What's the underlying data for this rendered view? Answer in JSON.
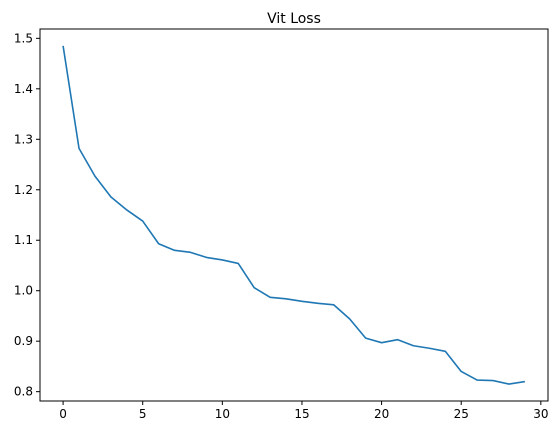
{
  "chart_data": {
    "type": "line",
    "title": "Vit Loss",
    "xlabel": "",
    "ylabel": "",
    "xlim": [
      -1.45,
      30.45
    ],
    "ylim": [
      0.7815,
      1.5185
    ],
    "x_ticks": [
      0,
      5,
      10,
      15,
      20,
      25,
      30
    ],
    "y_ticks": [
      0.8,
      0.9,
      1.0,
      1.1,
      1.2,
      1.3,
      1.4,
      1.5
    ],
    "x_tick_labels": [
      "0",
      "5",
      "10",
      "15",
      "20",
      "25",
      "30"
    ],
    "y_tick_labels": [
      "0.8",
      "0.9",
      "1.0",
      "1.1",
      "1.2",
      "1.3",
      "1.4",
      "1.5"
    ],
    "grid": false,
    "line_color": "#1f77b4",
    "series": [
      {
        "x": [
          0,
          1,
          2,
          3,
          4,
          5,
          6,
          7,
          8,
          9,
          10,
          11,
          12,
          13,
          14,
          15,
          16,
          17,
          18,
          19,
          20,
          21,
          22,
          23,
          24,
          25,
          26,
          27,
          28,
          29
        ],
        "values": [
          1.485,
          1.282,
          1.227,
          1.186,
          1.16,
          1.138,
          1.093,
          1.08,
          1.076,
          1.066,
          1.061,
          1.054,
          1.006,
          0.987,
          0.984,
          0.979,
          0.975,
          0.972,
          0.944,
          0.906,
          0.897,
          0.903,
          0.891,
          0.886,
          0.88,
          0.84,
          0.823,
          0.822,
          0.815,
          0.82
        ]
      }
    ]
  }
}
